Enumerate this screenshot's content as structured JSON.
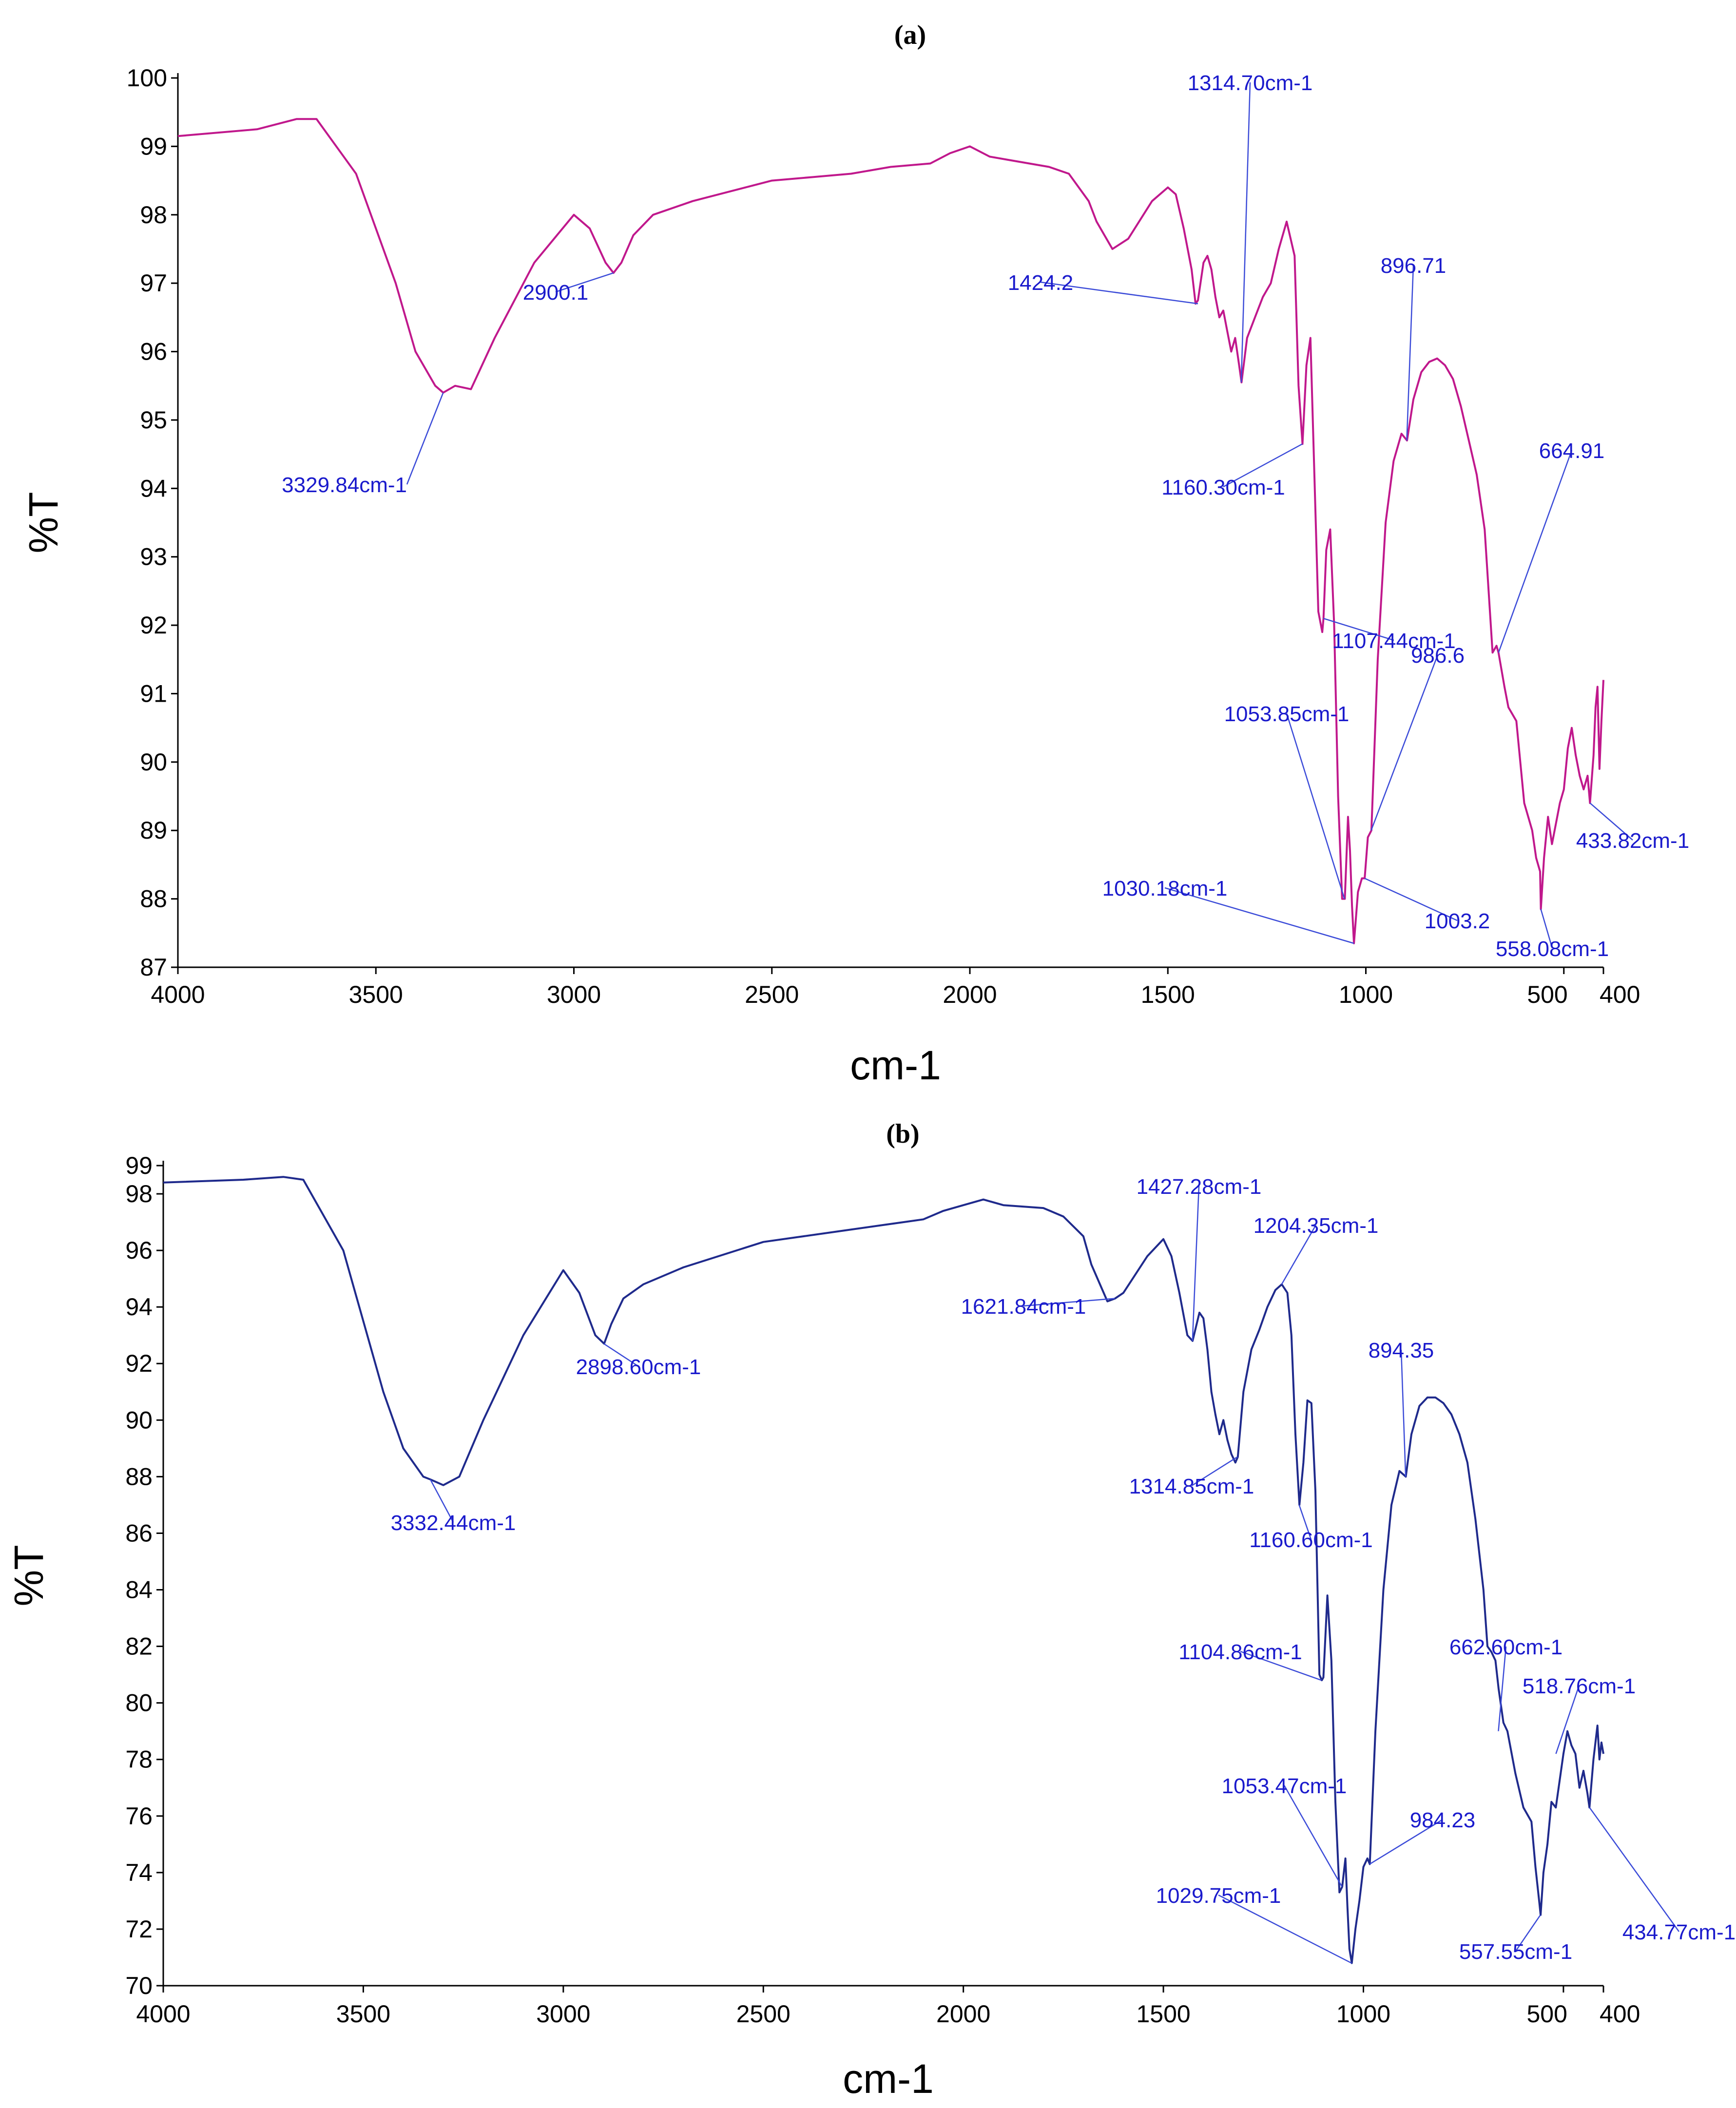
{
  "chart_data": [
    {
      "type": "line",
      "title": "(a)",
      "xlabel": "cm-1",
      "ylabel": "%T",
      "xlim": [
        4000,
        400
      ],
      "ylim": [
        87,
        100
      ],
      "line_color": "#c0188c",
      "x_ticks": [
        4000,
        3500,
        3000,
        2500,
        2000,
        1500,
        1000,
        500,
        400
      ],
      "x_tick_labels": [
        "4000",
        "3500",
        "3000",
        "2500",
        "2000",
        "1500",
        "1000",
        "500",
        "400"
      ],
      "y_ticks": [
        87,
        88,
        89,
        90,
        91,
        92,
        93,
        94,
        95,
        96,
        97,
        98,
        99,
        100
      ],
      "y_tick_labels": [
        "87",
        "88",
        "89",
        "90",
        "91",
        "92",
        "93",
        "94",
        "95",
        "96",
        "97",
        "98",
        "99",
        "100"
      ],
      "series": [
        {
          "name": "(a)",
          "x": [
            4000,
            3800,
            3700,
            3650,
            3550,
            3450,
            3400,
            3350,
            3330,
            3300,
            3260,
            3200,
            3100,
            3000,
            2960,
            2920,
            2900,
            2880,
            2850,
            2800,
            2700,
            2500,
            2400,
            2300,
            2200,
            2100,
            2050,
            2000,
            1950,
            1900,
            1800,
            1750,
            1700,
            1680,
            1640,
            1600,
            1540,
            1500,
            1480,
            1460,
            1440,
            1430,
            1424,
            1410,
            1400,
            1390,
            1380,
            1370,
            1360,
            1350,
            1340,
            1330,
            1320,
            1314,
            1300,
            1280,
            1260,
            1240,
            1220,
            1200,
            1180,
            1170,
            1160,
            1150,
            1140,
            1130,
            1120,
            1110,
            1107,
            1100,
            1090,
            1080,
            1070,
            1060,
            1053,
            1045,
            1040,
            1035,
            1030,
            1020,
            1010,
            1003,
            995,
            986,
            970,
            950,
            930,
            910,
            896,
            880,
            860,
            840,
            820,
            800,
            780,
            760,
            740,
            720,
            700,
            690,
            680,
            670,
            665,
            650,
            640,
            620,
            600,
            580,
            570,
            560,
            558,
            550,
            540,
            530,
            520,
            510,
            500,
            490,
            480,
            470,
            460,
            450,
            440,
            434,
            425,
            420,
            415,
            410,
            405,
            400
          ],
          "values": [
            99.15,
            99.25,
            99.4,
            99.4,
            98.6,
            97.0,
            96.0,
            95.5,
            95.4,
            95.5,
            95.45,
            96.2,
            97.3,
            98.0,
            97.8,
            97.3,
            97.15,
            97.3,
            97.7,
            98.0,
            98.2,
            98.5,
            98.55,
            98.6,
            98.7,
            98.75,
            98.9,
            99.0,
            98.85,
            98.8,
            98.7,
            98.6,
            98.2,
            97.9,
            97.5,
            97.65,
            98.2,
            98.4,
            98.3,
            97.8,
            97.2,
            96.7,
            96.75,
            97.3,
            97.4,
            97.2,
            96.8,
            96.5,
            96.6,
            96.3,
            96.0,
            96.2,
            95.8,
            95.55,
            96.2,
            96.5,
            96.8,
            97.0,
            97.5,
            97.9,
            97.4,
            95.5,
            94.65,
            95.8,
            96.2,
            94.2,
            92.2,
            91.9,
            92.1,
            93.1,
            93.4,
            92.0,
            89.5,
            88.0,
            88.0,
            89.2,
            88.7,
            87.9,
            87.35,
            88.1,
            88.3,
            88.3,
            88.9,
            89.0,
            91.5,
            93.5,
            94.4,
            94.8,
            94.7,
            95.3,
            95.7,
            95.85,
            95.9,
            95.8,
            95.6,
            95.2,
            94.7,
            94.2,
            93.4,
            92.5,
            91.6,
            91.7,
            91.6,
            91.1,
            90.8,
            90.6,
            89.4,
            89.0,
            88.6,
            88.4,
            87.85,
            88.6,
            89.2,
            88.8,
            89.1,
            89.4,
            89.6,
            90.2,
            90.5,
            90.1,
            89.8,
            89.6,
            89.8,
            89.4,
            90.1,
            90.8,
            91.1,
            89.9,
            90.6,
            91.2
          ]
        }
      ],
      "annotations": [
        {
          "label": "3329.84cm-1",
          "x": 3330,
          "y": 95.4
        },
        {
          "label": "2900.1",
          "x": 2900,
          "y": 97.15
        },
        {
          "label": "1424.2",
          "x": 1424,
          "y": 96.7
        },
        {
          "label": "1314.70cm-1",
          "x": 1314.7,
          "y": 95.55
        },
        {
          "label": "1160.30cm-1",
          "x": 1160.3,
          "y": 94.65
        },
        {
          "label": "896.71",
          "x": 896.7,
          "y": 94.7
        },
        {
          "label": "664.91",
          "x": 664.9,
          "y": 91.6
        },
        {
          "label": "1107.44cm-1",
          "x": 1107.4,
          "y": 92.1
        },
        {
          "label": "986.6",
          "x": 986.6,
          "y": 89.0
        },
        {
          "label": "1053.85cm-1",
          "x": 1053.9,
          "y": 88.0
        },
        {
          "label": "1030.18cm-1",
          "x": 1030.2,
          "y": 87.35
        },
        {
          "label": "1003.2",
          "x": 1003.2,
          "y": 88.3
        },
        {
          "label": "558.08cm-1",
          "x": 558.1,
          "y": 87.85
        },
        {
          "label": "433.82cm-1",
          "x": 433.8,
          "y": 89.4
        }
      ]
    },
    {
      "type": "line",
      "title": "(b)",
      "xlabel": "cm-1",
      "ylabel": "%T",
      "xlim": [
        4000,
        400
      ],
      "ylim": [
        70,
        99
      ],
      "line_color": "#1f2a8c",
      "x_ticks": [
        4000,
        3500,
        3000,
        2500,
        2000,
        1500,
        1000,
        500,
        400
      ],
      "x_tick_labels": [
        "4000",
        "3500",
        "3000",
        "2500",
        "2000",
        "1500",
        "1000",
        "500",
        "400"
      ],
      "y_ticks": [
        70,
        72,
        74,
        76,
        78,
        80,
        82,
        84,
        86,
        88,
        90,
        92,
        94,
        96,
        98,
        99
      ],
      "y_tick_labels": [
        "70",
        "72",
        "74",
        "76",
        "78",
        "80",
        "82",
        "84",
        "86",
        "88",
        "90",
        "92",
        "94",
        "96",
        "98",
        "99"
      ],
      "series": [
        {
          "name": "(b)",
          "x": [
            4000,
            3800,
            3700,
            3650,
            3550,
            3450,
            3400,
            3350,
            3332,
            3300,
            3260,
            3200,
            3100,
            3000,
            2960,
            2920,
            2898,
            2880,
            2850,
            2800,
            2700,
            2500,
            2400,
            2300,
            2200,
            2150,
            2100,
            2050,
            2000,
            1950,
            1900,
            1800,
            1750,
            1700,
            1680,
            1640,
            1621,
            1600,
            1540,
            1500,
            1480,
            1460,
            1440,
            1427,
            1410,
            1400,
            1390,
            1380,
            1370,
            1360,
            1350,
            1340,
            1330,
            1320,
            1314,
            1300,
            1280,
            1260,
            1240,
            1220,
            1204,
            1190,
            1180,
            1170,
            1160,
            1150,
            1140,
            1130,
            1120,
            1110,
            1104,
            1100,
            1090,
            1080,
            1070,
            1060,
            1053,
            1045,
            1040,
            1035,
            1029,
            1020,
            1010,
            1000,
            990,
            984,
            970,
            950,
            930,
            910,
            894,
            880,
            860,
            840,
            820,
            800,
            780,
            760,
            740,
            720,
            700,
            690,
            680,
            670,
            662,
            650,
            640,
            620,
            600,
            580,
            570,
            560,
            557,
            550,
            540,
            530,
            519,
            510,
            500,
            490,
            480,
            470,
            460,
            450,
            440,
            435,
            425,
            420,
            415,
            410,
            405,
            400
          ],
          "values": [
            98.4,
            98.5,
            98.6,
            98.5,
            96.0,
            91.0,
            89.0,
            88.0,
            87.9,
            87.7,
            88.0,
            90.0,
            93.0,
            95.3,
            94.5,
            93.0,
            92.7,
            93.4,
            94.3,
            94.8,
            95.4,
            96.3,
            96.5,
            96.7,
            96.9,
            97.0,
            97.1,
            97.4,
            97.6,
            97.8,
            97.6,
            97.5,
            97.2,
            96.5,
            95.5,
            94.2,
            94.3,
            94.5,
            95.8,
            96.4,
            95.8,
            94.5,
            93.0,
            92.8,
            93.8,
            93.6,
            92.5,
            91.0,
            90.2,
            89.5,
            90.0,
            89.3,
            88.8,
            88.5,
            88.7,
            91.0,
            92.5,
            93.2,
            94.0,
            94.6,
            94.8,
            94.5,
            93.0,
            89.5,
            87.0,
            88.5,
            90.7,
            90.6,
            87.5,
            81.0,
            80.8,
            80.9,
            83.8,
            81.5,
            76.5,
            73.3,
            73.5,
            74.5,
            72.8,
            71.3,
            70.8,
            72.0,
            73.0,
            74.2,
            74.5,
            74.3,
            79.0,
            84.0,
            87.0,
            88.2,
            88.0,
            89.5,
            90.5,
            90.8,
            90.8,
            90.6,
            90.2,
            89.5,
            88.5,
            86.5,
            84.0,
            82.0,
            81.8,
            81.5,
            80.5,
            79.3,
            79.0,
            77.5,
            76.3,
            75.8,
            74.2,
            72.9,
            72.5,
            74.0,
            75.0,
            76.5,
            76.3,
            77.2,
            78.2,
            79.0,
            78.5,
            78.2,
            77.0,
            77.6,
            76.8,
            76.3,
            78.0,
            78.6,
            79.2,
            78.0,
            78.6,
            78.2
          ]
        }
      ],
      "annotations": [
        {
          "label": "3332.44cm-1",
          "x": 3332.4,
          "y": 87.9
        },
        {
          "label": "2898.60cm-1",
          "x": 2898.6,
          "y": 92.7
        },
        {
          "label": "1621.84cm-1",
          "x": 1621.8,
          "y": 94.3
        },
        {
          "label": "1427.28cm-1",
          "x": 1427.3,
          "y": 92.8
        },
        {
          "label": "1204.35cm-1",
          "x": 1204.4,
          "y": 94.8
        },
        {
          "label": "1314.85cm-1",
          "x": 1314.9,
          "y": 88.7
        },
        {
          "label": "1160.60cm-1",
          "x": 1160.6,
          "y": 87.0
        },
        {
          "label": "894.35",
          "x": 894.4,
          "y": 88.0
        },
        {
          "label": "1104.86cm-1",
          "x": 1104.9,
          "y": 80.8
        },
        {
          "label": "662.60cm-1",
          "x": 662.6,
          "y": 79.0
        },
        {
          "label": "518.76cm-1",
          "x": 518.8,
          "y": 78.2
        },
        {
          "label": "1053.47cm-1",
          "x": 1053.5,
          "y": 73.5
        },
        {
          "label": "984.23",
          "x": 984.2,
          "y": 74.3
        },
        {
          "label": "1029.75cm-1",
          "x": 1029.8,
          "y": 70.8
        },
        {
          "label": "557.55cm-1",
          "x": 557.6,
          "y": 72.5
        },
        {
          "label": "434.77cm-1",
          "x": 434.8,
          "y": 76.3
        }
      ]
    }
  ]
}
